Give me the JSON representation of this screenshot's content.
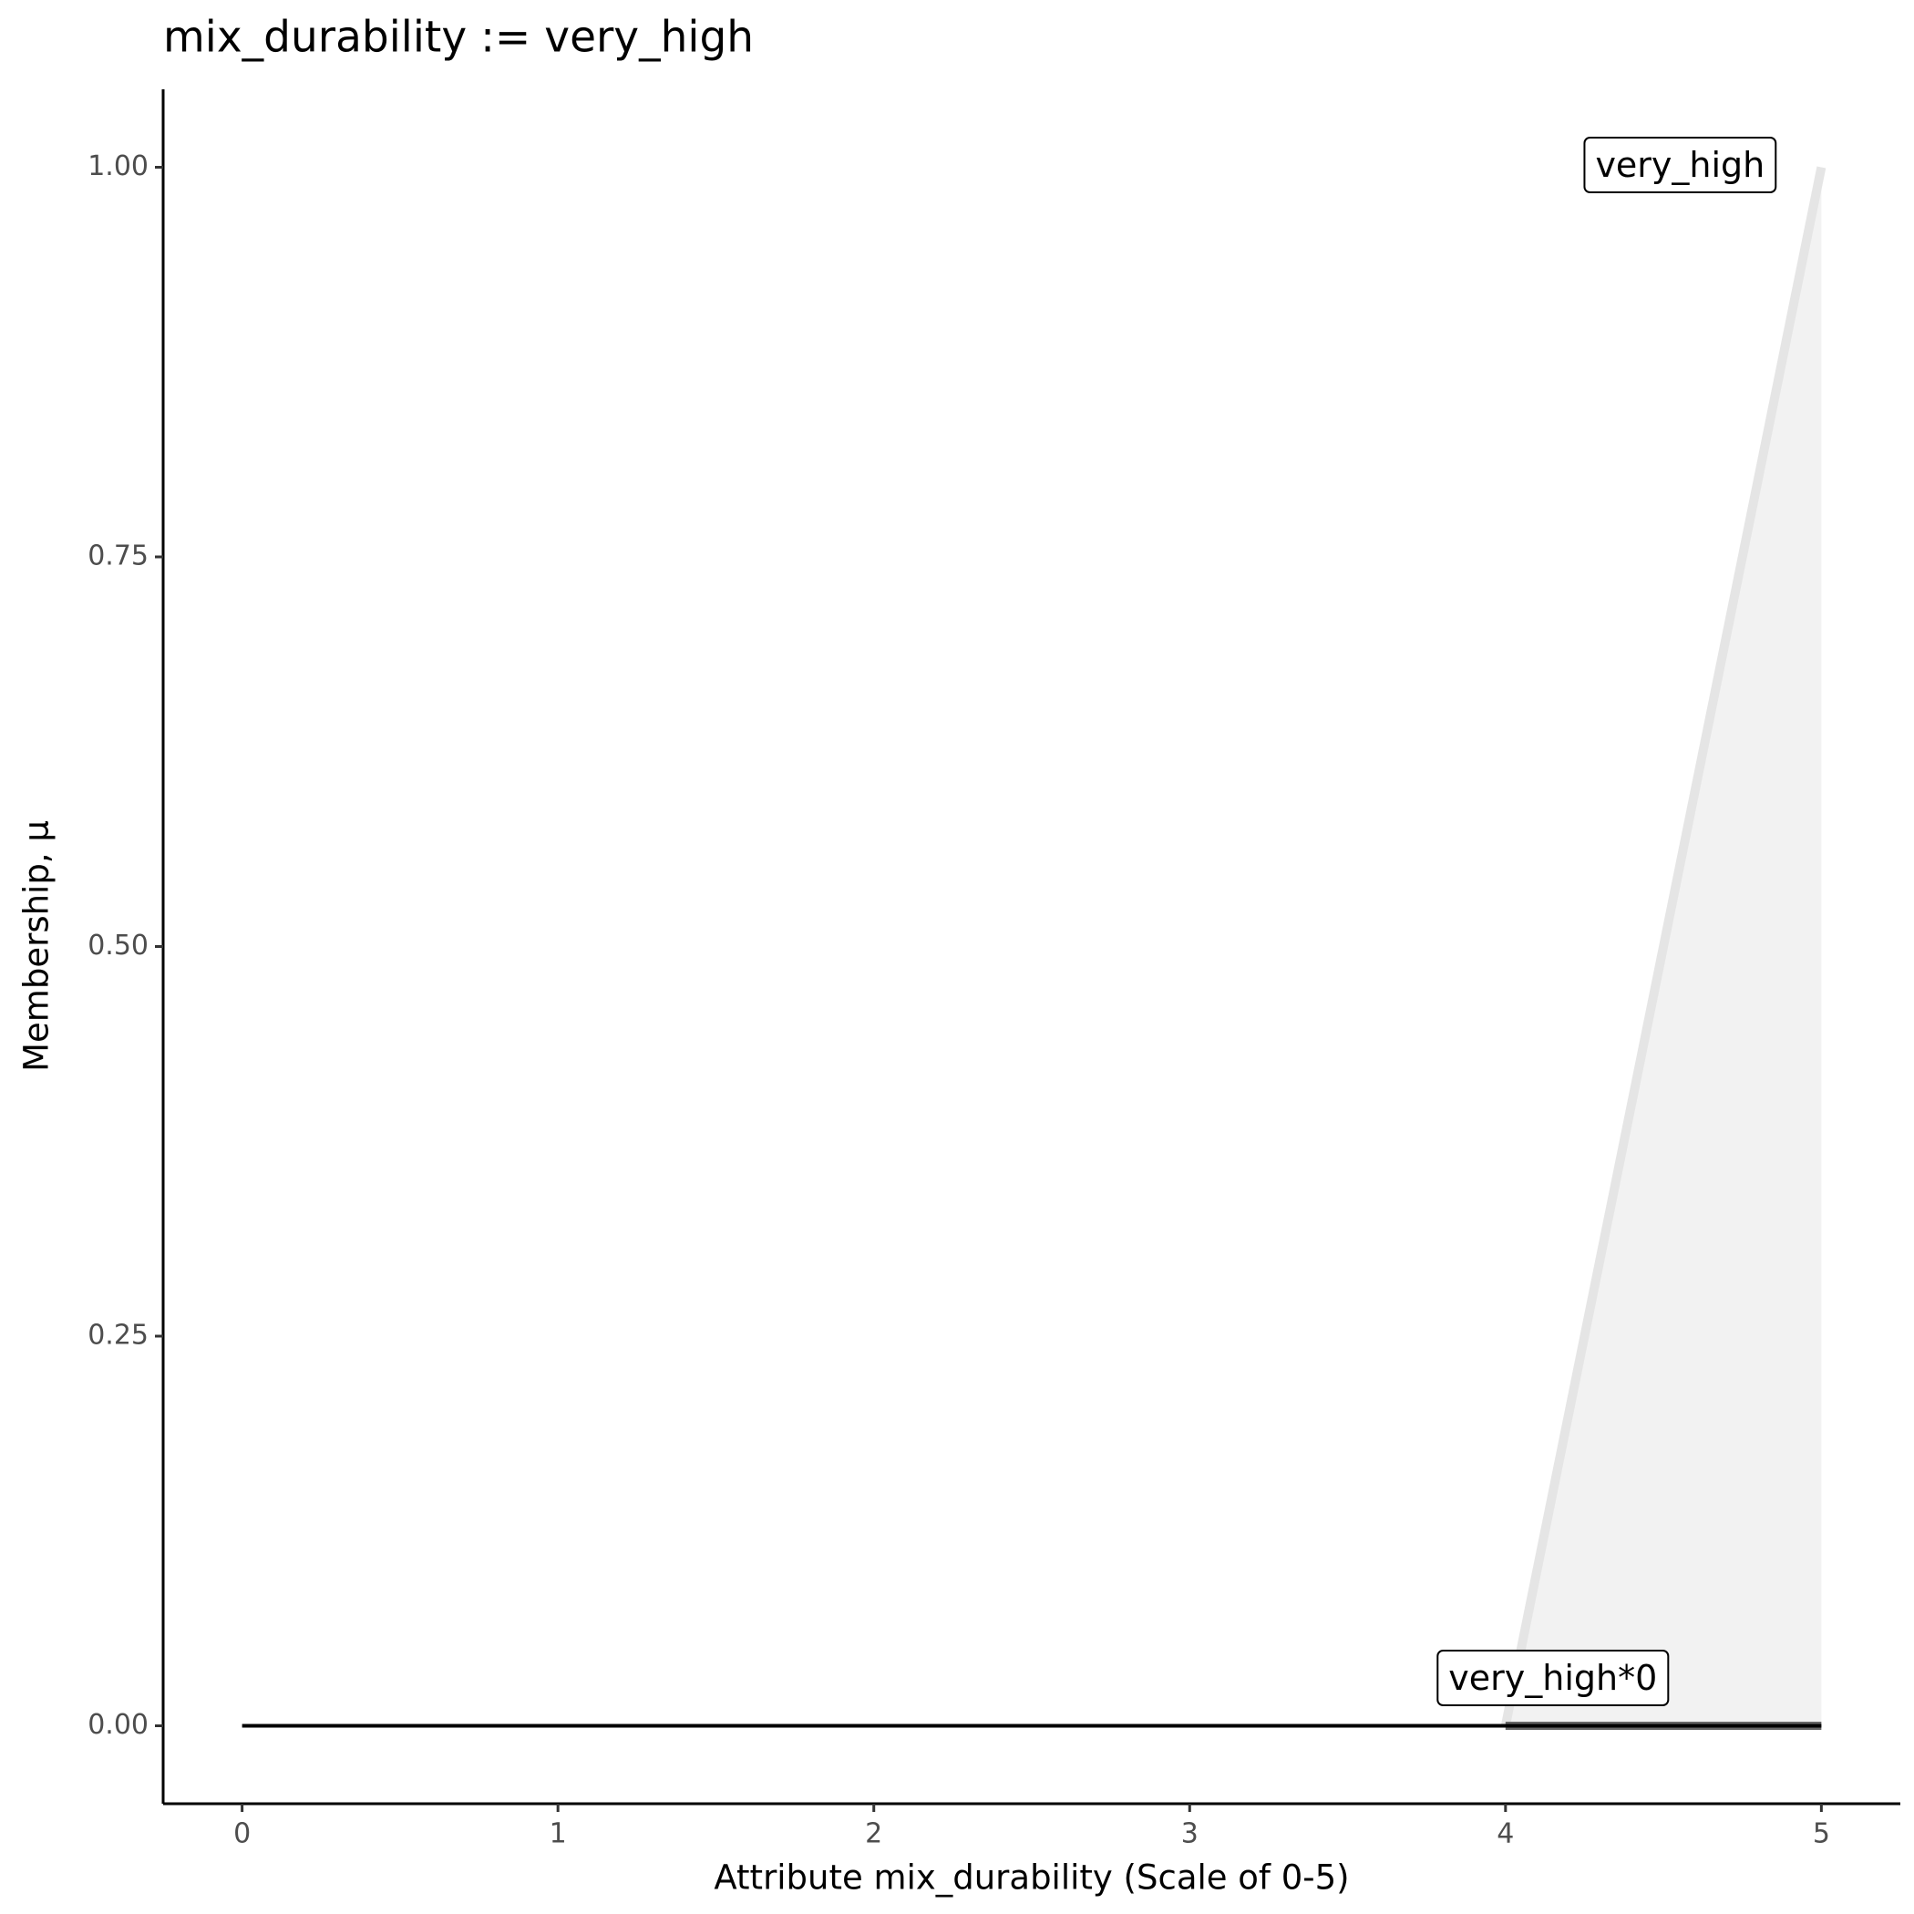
{
  "chart_data": {
    "type": "line",
    "title": "mix_durability := very_high",
    "x_label": "Attribute mix_durability (Scale of 0-5)",
    "y_label": "Membership, μ",
    "xlim": [
      -0.25,
      5.25
    ],
    "ylim": [
      -0.05,
      1.05
    ],
    "xticks": [
      0,
      1,
      2,
      3,
      4,
      5
    ],
    "yticks": [
      {
        "value": 0,
        "label": "0.00"
      },
      {
        "value": 0.25,
        "label": "0.25"
      },
      {
        "value": 0.5,
        "label": "0.50"
      },
      {
        "value": 0.75,
        "label": "0.75"
      },
      {
        "value": 1,
        "label": "1.00"
      }
    ],
    "baseline": {
      "x": [
        0,
        5
      ],
      "values": [
        0,
        0
      ],
      "color": "#000000"
    },
    "series": [
      {
        "name": "very_high",
        "x": [
          4,
          5
        ],
        "values": [
          0,
          1
        ],
        "color": "#e5e5e5",
        "fill": "#f2f2f2"
      },
      {
        "name": "very_high*0",
        "x": [
          4,
          5
        ],
        "values": [
          0,
          0
        ],
        "color": "#666666"
      }
    ]
  }
}
